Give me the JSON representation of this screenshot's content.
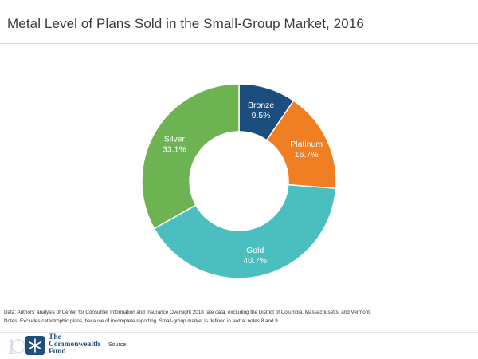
{
  "chart_data": {
    "type": "donut",
    "title": "Metal Level of Plans Sold in the Small-Group Market, 2016",
    "categories": [
      "Bronze",
      "Platinum",
      "Gold",
      "Silver"
    ],
    "values": [
      9.5,
      16.7,
      40.7,
      33.1
    ],
    "value_labels": [
      "9.5%",
      "16.7%",
      "40.7%",
      "33.1%"
    ],
    "colors": [
      "#1b4d7e",
      "#f07e22",
      "#4bbfbf",
      "#6db352"
    ],
    "label_colors": [
      "#ffffff",
      "#ffffff",
      "#ffffff",
      "#ffffff"
    ],
    "start": "12 o'clock",
    "direction": "clockwise"
  },
  "notes": {
    "data_line": "Data: Authors' analysis of Center for Consumer Information and Insurance Oversight 2018 rate data, excluding the District of Columbia, Massachusetts, and Vermont.",
    "notes_line": "Notes: Excludes catastrophic plans, because of incomplete reporting. Small-group market is defined in text at notes 8 and 9."
  },
  "footer": {
    "logo_line1": "The",
    "logo_line2": "Commonwealth",
    "logo_line3": "Fund",
    "source_label": "Source:"
  },
  "colors": {
    "brand": "#1f4e79"
  }
}
